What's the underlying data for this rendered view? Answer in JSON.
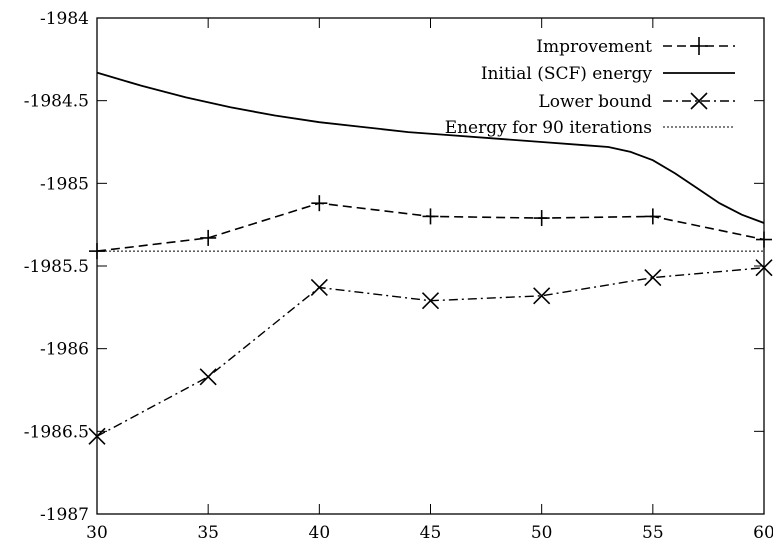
{
  "chart_data": {
    "type": "line",
    "xlim": [
      30,
      60
    ],
    "ylim": [
      -1987,
      -1984
    ],
    "x_ticks": [
      30,
      35,
      40,
      45,
      50,
      55,
      60
    ],
    "y_ticks": [
      -1984,
      -1984.5,
      -1985,
      -1985.5,
      -1986,
      -1986.5,
      -1987
    ],
    "grid": false,
    "legend_position": "top-right",
    "series": [
      {
        "name": "Improvement",
        "style": "dashed",
        "marker": "plus",
        "x": [
          30,
          35,
          40,
          45,
          50,
          55,
          60
        ],
        "y": [
          -1985.41,
          -1985.33,
          -1985.12,
          -1985.2,
          -1985.21,
          -1985.2,
          -1985.34
        ]
      },
      {
        "name": "Initial (SCF) energy",
        "style": "solid",
        "marker": "none",
        "x": [
          30,
          32,
          34,
          36,
          38,
          40,
          42,
          44,
          46,
          48,
          50,
          52,
          53,
          54,
          55,
          56,
          57,
          58,
          59,
          60
        ],
        "y": [
          -1984.33,
          -1984.41,
          -1984.48,
          -1984.54,
          -1984.59,
          -1984.63,
          -1984.66,
          -1984.69,
          -1984.71,
          -1984.73,
          -1984.75,
          -1984.77,
          -1984.78,
          -1984.81,
          -1984.86,
          -1984.94,
          -1985.03,
          -1985.12,
          -1985.19,
          -1985.24
        ]
      },
      {
        "name": "Lower bound",
        "style": "dashdot",
        "marker": "cross",
        "x": [
          30,
          35,
          40,
          45,
          50,
          55,
          60
        ],
        "y": [
          -1986.53,
          -1986.17,
          -1985.63,
          -1985.71,
          -1985.68,
          -1985.57,
          -1985.51
        ]
      },
      {
        "name": "Energy for 90 iterations",
        "style": "dotted",
        "marker": "none",
        "x": [
          30,
          60
        ],
        "y": [
          -1985.41,
          -1985.41
        ]
      }
    ]
  }
}
